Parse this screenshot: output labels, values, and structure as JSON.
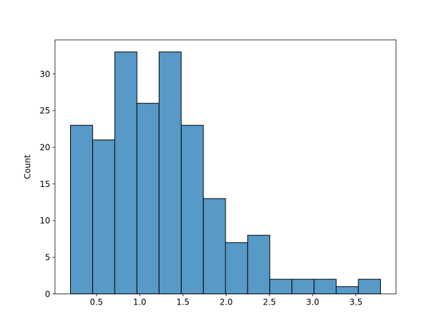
{
  "chart_data": {
    "type": "bar",
    "title": "",
    "xlabel": "",
    "ylabel": "Count",
    "bins": [
      {
        "x0": 0.2,
        "x1": 0.456,
        "count": 23
      },
      {
        "x0": 0.456,
        "x1": 0.712,
        "count": 21
      },
      {
        "x0": 0.712,
        "x1": 0.968,
        "count": 33
      },
      {
        "x0": 0.968,
        "x1": 1.224,
        "count": 26
      },
      {
        "x0": 1.224,
        "x1": 1.48,
        "count": 33
      },
      {
        "x0": 1.48,
        "x1": 1.736,
        "count": 23
      },
      {
        "x0": 1.736,
        "x1": 1.992,
        "count": 13
      },
      {
        "x0": 1.992,
        "x1": 2.248,
        "count": 7
      },
      {
        "x0": 2.248,
        "x1": 2.504,
        "count": 8
      },
      {
        "x0": 2.504,
        "x1": 2.76,
        "count": 2
      },
      {
        "x0": 2.76,
        "x1": 3.016,
        "count": 2
      },
      {
        "x0": 3.016,
        "x1": 3.272,
        "count": 2
      },
      {
        "x0": 3.272,
        "x1": 3.528,
        "count": 1
      },
      {
        "x0": 3.528,
        "x1": 3.784,
        "count": 2
      }
    ],
    "xlim": [
      0.021,
      3.963
    ],
    "ylim": [
      0,
      34.65
    ],
    "xticks": [
      0.5,
      1.0,
      1.5,
      2.0,
      2.5,
      3.0,
      3.5
    ],
    "xtick_labels": [
      "0.5",
      "1.0",
      "1.5",
      "2.0",
      "2.5",
      "3.0",
      "3.5"
    ],
    "yticks": [
      0,
      5,
      10,
      15,
      20,
      25,
      30
    ],
    "ytick_labels": [
      "0",
      "5",
      "10",
      "15",
      "20",
      "25",
      "30"
    ],
    "bar_color": "#5799c7",
    "edge_color": "#000000",
    "grid": false,
    "legend": "none"
  }
}
